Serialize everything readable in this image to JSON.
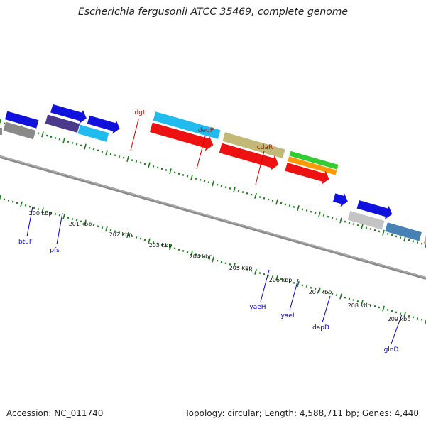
{
  "title": "Escherichia fergusonii ATCC 35469, complete genome",
  "accession": "Accession: NC_011740",
  "stats": "Topology: circular; Length: 4,588,711 bp; Genes: 4,440",
  "tick_labels": [
    "200 kbp",
    "201 kbp",
    "202 kbp",
    "203 kbp",
    "204 kbp",
    "205 kbp",
    "206 kbp",
    "207 kbp",
    "208 kbp",
    "209 kbp"
  ],
  "gene_labels_top": [
    "dgt",
    "degP",
    "cdaR"
  ],
  "gene_labels_bottom": [
    "btuF",
    "pfs",
    "yaeH",
    "yaeI",
    "dapD",
    "glnD"
  ],
  "colors": {
    "backbone": "#8a8a8a",
    "tick_green": "#1f7a1f",
    "cds_red": "#ee1111",
    "blue": "#1111dd",
    "cyan": "#22bbee",
    "khaki": "#c2b878",
    "green": "#33cc33",
    "orange": "#ff9900",
    "steel": "#4682b4",
    "indigo": "#4b3a8c",
    "grey": "#9a9a9a",
    "label_top": "#cc0000",
    "label_bottom": "#0000cc"
  }
}
